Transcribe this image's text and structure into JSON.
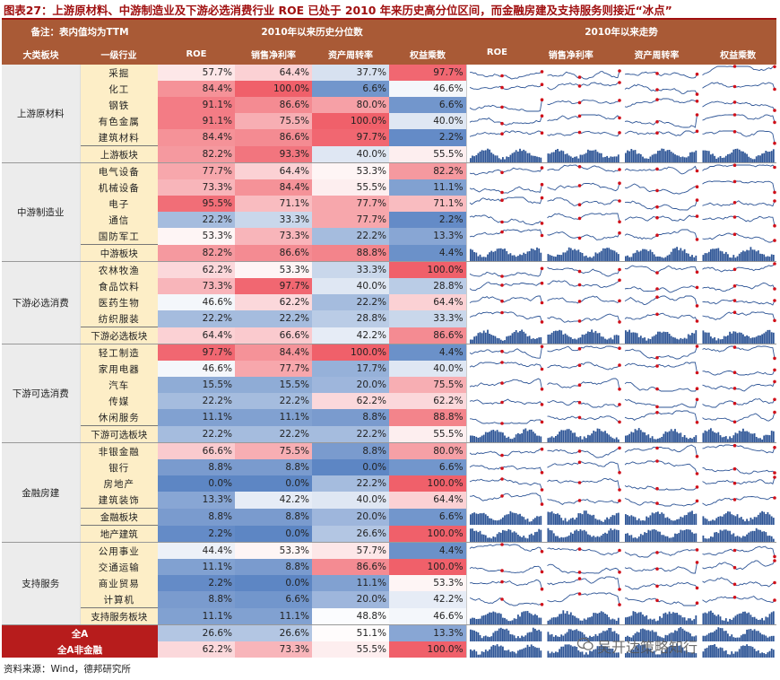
{
  "title": "图表27：上游原材料、中游制造业及下游必选消费行业 ROE 已处于 2010 年来历史高分位区间，而金融房建及支持服务则接近“冰点”",
  "header": {
    "note": "备注：表内值均为TTM",
    "pct_header": "2010年以来历史分位数",
    "trend_header": "2010年以来走势",
    "col_group": "大类板块",
    "col_industry": "一级行业",
    "metrics": [
      "ROE",
      "销售净利率",
      "资产周转率",
      "权益乘数"
    ],
    "trend_metrics": [
      "ROE",
      "销售净利率",
      "资产周转率",
      "权益乘数"
    ]
  },
  "groups": [
    {
      "name": "上游原材料",
      "rows": [
        {
          "name": "采掘",
          "v": [
            "57.7%",
            "64.4%",
            "37.7%",
            "97.7%"
          ],
          "p": [
            57.7,
            64.4,
            37.7,
            97.7
          ]
        },
        {
          "name": "化工",
          "v": [
            "84.4%",
            "100.0%",
            "6.6%",
            "46.6%"
          ],
          "p": [
            84.4,
            100.0,
            6.6,
            46.6
          ]
        },
        {
          "name": "钢铁",
          "v": [
            "91.1%",
            "86.6%",
            "80.0%",
            "6.6%"
          ],
          "p": [
            91.1,
            86.6,
            80.0,
            6.6
          ]
        },
        {
          "name": "有色金属",
          "v": [
            "91.1%",
            "75.5%",
            "100.0%",
            "40.0%"
          ],
          "p": [
            91.1,
            75.5,
            100.0,
            40.0
          ]
        },
        {
          "name": "建筑材料",
          "v": [
            "84.4%",
            "86.6%",
            "97.7%",
            "2.2%"
          ],
          "p": [
            84.4,
            86.6,
            97.7,
            2.2
          ]
        },
        {
          "name": "上游板块",
          "v": [
            "82.2%",
            "93.3%",
            "40.0%",
            "55.5%"
          ],
          "p": [
            82.2,
            93.3,
            40.0,
            55.5
          ],
          "sum": true
        }
      ]
    },
    {
      "name": "中游制造业",
      "rows": [
        {
          "name": "电气设备",
          "v": [
            "77.7%",
            "64.4%",
            "53.3%",
            "82.2%"
          ],
          "p": [
            77.7,
            64.4,
            53.3,
            82.2
          ]
        },
        {
          "name": "机械设备",
          "v": [
            "73.3%",
            "84.4%",
            "55.5%",
            "11.1%"
          ],
          "p": [
            73.3,
            84.4,
            55.5,
            11.1
          ]
        },
        {
          "name": "电子",
          "v": [
            "95.5%",
            "71.1%",
            "77.7%",
            "71.1%"
          ],
          "p": [
            95.5,
            71.1,
            77.7,
            71.1
          ]
        },
        {
          "name": "通信",
          "v": [
            "22.2%",
            "33.3%",
            "77.7%",
            "2.2%"
          ],
          "p": [
            22.2,
            33.3,
            77.7,
            2.2
          ]
        },
        {
          "name": "国防军工",
          "v": [
            "53.3%",
            "73.3%",
            "22.2%",
            "13.3%"
          ],
          "p": [
            53.3,
            73.3,
            22.2,
            13.3
          ]
        },
        {
          "name": "中游板块",
          "v": [
            "82.2%",
            "86.6%",
            "88.8%",
            "4.4%"
          ],
          "p": [
            82.2,
            86.6,
            88.8,
            4.4
          ],
          "sum": true
        }
      ]
    },
    {
      "name": "下游必选消费",
      "rows": [
        {
          "name": "农林牧渔",
          "v": [
            "62.2%",
            "53.3%",
            "33.3%",
            "100.0%"
          ],
          "p": [
            62.2,
            53.3,
            33.3,
            100.0
          ]
        },
        {
          "name": "食品饮料",
          "v": [
            "73.3%",
            "97.7%",
            "40.0%",
            "28.8%"
          ],
          "p": [
            73.3,
            97.7,
            40.0,
            28.8
          ]
        },
        {
          "name": "医药生物",
          "v": [
            "46.6%",
            "62.2%",
            "22.2%",
            "64.4%"
          ],
          "p": [
            46.6,
            62.2,
            22.2,
            64.4
          ]
        },
        {
          "name": "纺织服装",
          "v": [
            "22.2%",
            "22.2%",
            "28.8%",
            "33.3%"
          ],
          "p": [
            22.2,
            22.2,
            28.8,
            33.3
          ]
        },
        {
          "name": "下游必选板块",
          "v": [
            "64.4%",
            "66.6%",
            "42.2%",
            "86.6%"
          ],
          "p": [
            64.4,
            66.6,
            42.2,
            86.6
          ],
          "sum": true
        }
      ]
    },
    {
      "name": "下游可选消费",
      "rows": [
        {
          "name": "轻工制造",
          "v": [
            "97.7%",
            "84.4%",
            "100.0%",
            "4.4%"
          ],
          "p": [
            97.7,
            84.4,
            100.0,
            4.4
          ]
        },
        {
          "name": "家用电器",
          "v": [
            "46.6%",
            "77.7%",
            "17.7%",
            "40.0%"
          ],
          "p": [
            46.6,
            77.7,
            17.7,
            40.0
          ]
        },
        {
          "name": "汽车",
          "v": [
            "15.5%",
            "15.5%",
            "20.0%",
            "75.5%"
          ],
          "p": [
            15.5,
            15.5,
            20.0,
            75.5
          ]
        },
        {
          "name": "传媒",
          "v": [
            "22.2%",
            "22.2%",
            "62.2%",
            "62.2%"
          ],
          "p": [
            22.2,
            22.2,
            62.2,
            62.2
          ]
        },
        {
          "name": "休闲服务",
          "v": [
            "11.1%",
            "11.1%",
            "8.8%",
            "88.8%"
          ],
          "p": [
            11.1,
            11.1,
            8.8,
            88.8
          ]
        },
        {
          "name": "下游可选板块",
          "v": [
            "22.2%",
            "22.2%",
            "22.2%",
            "55.5%"
          ],
          "p": [
            22.2,
            22.2,
            22.2,
            55.5
          ],
          "sum": true
        }
      ]
    },
    {
      "name": "金融房建",
      "rows": [
        {
          "name": "非银金融",
          "v": [
            "66.6%",
            "75.5%",
            "8.8%",
            "80.0%"
          ],
          "p": [
            66.6,
            75.5,
            8.8,
            80.0
          ]
        },
        {
          "name": "银行",
          "v": [
            "8.8%",
            "8.8%",
            "0.0%",
            "6.6%"
          ],
          "p": [
            8.8,
            8.8,
            0.0,
            6.6
          ]
        },
        {
          "name": "房地产",
          "v": [
            "0.0%",
            "0.0%",
            "22.2%",
            "100.0%"
          ],
          "p": [
            0.0,
            0.0,
            22.2,
            100.0
          ]
        },
        {
          "name": "建筑装饰",
          "v": [
            "13.3%",
            "42.2%",
            "40.0%",
            "64.4%"
          ],
          "p": [
            13.3,
            42.2,
            40.0,
            64.4
          ]
        },
        {
          "name": "金融板块",
          "v": [
            "8.8%",
            "8.8%",
            "20.0%",
            "6.6%"
          ],
          "p": [
            8.8,
            8.8,
            20.0,
            6.6
          ],
          "sum": true
        },
        {
          "name": "地产建筑",
          "v": [
            "2.2%",
            "0.0%",
            "26.6%",
            "100.0%"
          ],
          "p": [
            2.2,
            0.0,
            26.6,
            100.0
          ],
          "sum": true
        }
      ]
    },
    {
      "name": "支持服务",
      "rows": [
        {
          "name": "公用事业",
          "v": [
            "44.4%",
            "53.3%",
            "57.7%",
            "4.4%"
          ],
          "p": [
            44.4,
            53.3,
            57.7,
            4.4
          ]
        },
        {
          "name": "交通运输",
          "v": [
            "11.1%",
            "8.8%",
            "86.6%",
            "100.0%"
          ],
          "p": [
            11.1,
            8.8,
            86.6,
            100.0
          ]
        },
        {
          "name": "商业贸易",
          "v": [
            "2.2%",
            "0.0%",
            "11.1%",
            "53.3%"
          ],
          "p": [
            2.2,
            0.0,
            11.1,
            53.3
          ]
        },
        {
          "name": "计算机",
          "v": [
            "8.8%",
            "6.6%",
            "20.0%",
            "42.2%"
          ],
          "p": [
            8.8,
            6.6,
            20.0,
            42.2
          ]
        },
        {
          "name": "支持服务板块",
          "v": [
            "11.1%",
            "11.1%",
            "48.8%",
            "46.6%"
          ],
          "p": [
            11.1,
            11.1,
            48.8,
            46.6
          ],
          "sum": true
        }
      ]
    }
  ],
  "totals": [
    {
      "name": "全A",
      "v": [
        "26.6%",
        "26.6%",
        "51.1%",
        "13.3%"
      ],
      "p": [
        26.6,
        26.6,
        51.1,
        13.3
      ]
    },
    {
      "name": "全A非金融",
      "v": [
        "62.2%",
        "73.3%",
        "55.5%",
        "100.0%"
      ],
      "p": [
        62.2,
        73.3,
        55.5,
        100.0
      ]
    }
  ],
  "source": "资料来源：Wind，德邦研究所",
  "watermark": "吴开达策略知行",
  "colors": {
    "high": "#f0606a",
    "low": "#5d86c4",
    "mid": "#ffffff",
    "header": "#a95a36",
    "title": "#a01010",
    "line": "#2e5596",
    "marker": "#d0101a",
    "total": "#b71c1c"
  }
}
